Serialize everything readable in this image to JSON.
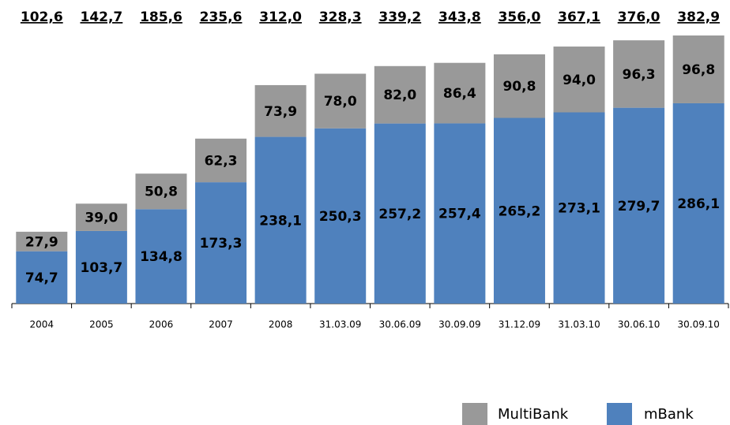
{
  "chart_data": {
    "type": "stacked_bar",
    "categories": [
      "2004",
      "2005",
      "2006",
      "2007",
      "2008",
      "31.03.09",
      "30.06.09",
      "30.09.09",
      "31.12.09",
      "31.03.10",
      "30.06.10",
      "30.09.10"
    ],
    "series": [
      {
        "name": "mBank",
        "color": "#4f81bd",
        "values": [
          74.7,
          103.7,
          134.8,
          173.3,
          238.1,
          250.3,
          257.2,
          257.4,
          265.2,
          273.1,
          279.7,
          286.1
        ],
        "value_labels": [
          "74,7",
          "103,7",
          "134,8",
          "173,3",
          "238,1",
          "250,3",
          "257,2",
          "257,4",
          "265,2",
          "273,1",
          "279,7",
          "286,1"
        ]
      },
      {
        "name": "MultiBank",
        "color": "#999999",
        "values": [
          27.9,
          39.0,
          50.8,
          62.3,
          73.9,
          78.0,
          82.0,
          86.4,
          90.8,
          94.0,
          96.3,
          96.8
        ],
        "value_labels": [
          "27,9",
          "39,0",
          "50,8",
          "62,3",
          "73,9",
          "78,0",
          "82,0",
          "86,4",
          "90,8",
          "94,0",
          "96,3",
          "96,8"
        ]
      }
    ],
    "total_labels": [
      "102,6",
      "142,7",
      "185,6",
      "235,6",
      "312,0",
      "328,3",
      "339,2",
      "343,8",
      "356,0",
      "367,1",
      "376,0",
      "382,9"
    ]
  }
}
